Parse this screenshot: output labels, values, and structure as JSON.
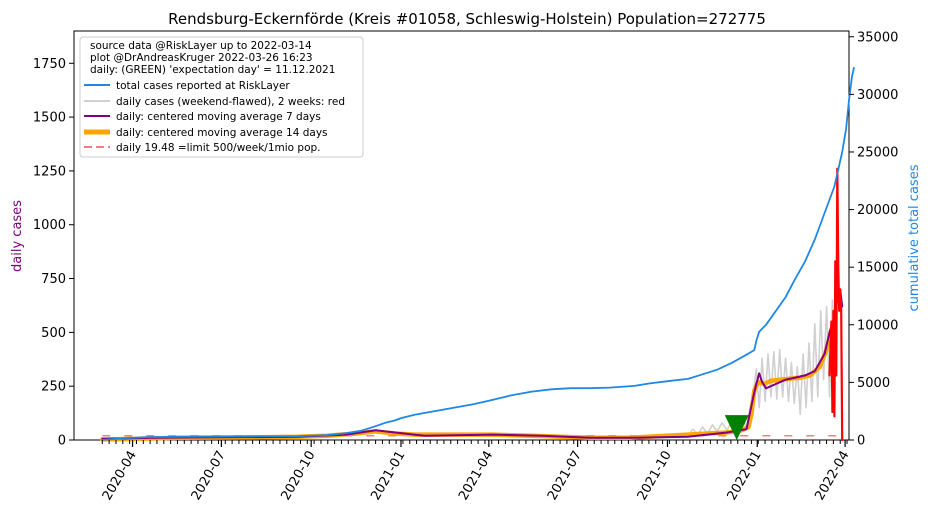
{
  "chart_data": {
    "type": "line",
    "title": "Rendsburg-Eckernförde (Kreis #01058, Schleswig-Holstein) Population=272775",
    "ylabel_left": "daily cases",
    "ylabel_right": "cumulative total cases",
    "ylim_left": [
      0,
      1900
    ],
    "ylim_right": [
      0,
      35500
    ],
    "yticks_left": [
      0,
      250,
      500,
      750,
      1000,
      1250,
      1500,
      1750
    ],
    "yticks_right": [
      0,
      5000,
      10000,
      15000,
      20000,
      25000,
      30000,
      35000
    ],
    "xlim_days": [
      -29,
      765
    ],
    "xticks": [
      {
        "day": 31,
        "label": "2020-04"
      },
      {
        "day": 122,
        "label": "2020-07"
      },
      {
        "day": 214,
        "label": "2020-10"
      },
      {
        "day": 306,
        "label": "2021-01"
      },
      {
        "day": 396,
        "label": "2021-04"
      },
      {
        "day": 487,
        "label": "2021-07"
      },
      {
        "day": 579,
        "label": "2021-10"
      },
      {
        "day": 671,
        "label": "2022-01"
      },
      {
        "day": 761,
        "label": "2022-04"
      }
    ],
    "x_origin_date": "2020-03-01",
    "legend": {
      "header": [
        "source data @RiskLayer up to 2022-03-14",
        "plot @DrAndreasKruger 2022-03-26 16:23",
        "daily: (GREEN) 'expectation day' = 11.12.2021"
      ],
      "entries": [
        {
          "label": "total cases reported at RiskLayer",
          "color": "#1e88e5",
          "style": "solid"
        },
        {
          "label": "daily cases (weekend-flawed), 2 weeks: red",
          "color": "#d0d0d0",
          "style": "solid"
        },
        {
          "label": "daily: centered moving average 7 days",
          "color": "#800080",
          "style": "solid"
        },
        {
          "label": "daily: centered moving average 14 days",
          "color": "#ffa500",
          "style": "thick"
        },
        {
          "label": "daily 19.48 =limit 500/week/1mio pop.",
          "color": "#f08080",
          "style": "dashed"
        }
      ],
      "position": "top-left"
    },
    "limit_line": {
      "value": 19.48,
      "color": "#f08080"
    },
    "expectation_marker": {
      "day": 650,
      "value": 55,
      "color": "#008000"
    },
    "series": [
      {
        "name": "total cases reported at RiskLayer",
        "axis": "right",
        "color": "#1e88e5",
        "points": [
          [
            0,
            5
          ],
          [
            20,
            150
          ],
          [
            45,
            250
          ],
          [
            90,
            290
          ],
          [
            150,
            320
          ],
          [
            200,
            340
          ],
          [
            230,
            420
          ],
          [
            250,
            600
          ],
          [
            265,
            800
          ],
          [
            280,
            1200
          ],
          [
            290,
            1500
          ],
          [
            300,
            1700
          ],
          [
            306,
            1900
          ],
          [
            320,
            2200
          ],
          [
            340,
            2500
          ],
          [
            360,
            2800
          ],
          [
            380,
            3100
          ],
          [
            396,
            3400
          ],
          [
            420,
            3900
          ],
          [
            440,
            4200
          ],
          [
            460,
            4400
          ],
          [
            480,
            4500
          ],
          [
            500,
            4500
          ],
          [
            520,
            4550
          ],
          [
            545,
            4700
          ],
          [
            560,
            4900
          ],
          [
            579,
            5100
          ],
          [
            600,
            5300
          ],
          [
            615,
            5700
          ],
          [
            630,
            6100
          ],
          [
            645,
            6700
          ],
          [
            660,
            7400
          ],
          [
            668,
            7800
          ],
          [
            670,
            8600
          ],
          [
            673,
            9400
          ],
          [
            680,
            10000
          ],
          [
            690,
            11200
          ],
          [
            700,
            12400
          ],
          [
            710,
            14000
          ],
          [
            720,
            15500
          ],
          [
            730,
            17400
          ],
          [
            740,
            19700
          ],
          [
            750,
            22000
          ],
          [
            758,
            25000
          ],
          [
            762,
            27000
          ],
          [
            765,
            29500
          ],
          [
            768,
            31500
          ],
          [
            770,
            32300
          ]
        ]
      },
      {
        "name": "daily cases (weekend-flawed)",
        "axis": "left",
        "color": "#d0d0d0",
        "points": [
          [
            600,
            20
          ],
          [
            605,
            50
          ],
          [
            610,
            25
          ],
          [
            615,
            60
          ],
          [
            620,
            30
          ],
          [
            625,
            70
          ],
          [
            630,
            40
          ],
          [
            635,
            80
          ],
          [
            640,
            45
          ],
          [
            645,
            90
          ],
          [
            650,
            55
          ],
          [
            655,
            100
          ],
          [
            660,
            60
          ],
          [
            664,
            160
          ],
          [
            667,
            220
          ],
          [
            670,
            330
          ],
          [
            673,
            150
          ],
          [
            676,
            380
          ],
          [
            679,
            180
          ],
          [
            682,
            400
          ],
          [
            685,
            200
          ],
          [
            688,
            410
          ],
          [
            691,
            190
          ],
          [
            694,
            420
          ],
          [
            697,
            200
          ],
          [
            700,
            380
          ],
          [
            703,
            180
          ],
          [
            706,
            360
          ],
          [
            709,
            170
          ],
          [
            712,
            340
          ],
          [
            715,
            120
          ],
          [
            718,
            400
          ],
          [
            721,
            150
          ],
          [
            724,
            450
          ],
          [
            727,
            180
          ],
          [
            730,
            540
          ],
          [
            733,
            200
          ],
          [
            736,
            600
          ],
          [
            739,
            280
          ],
          [
            742,
            620
          ],
          [
            745,
            200
          ],
          [
            748,
            650
          ],
          [
            751,
            300
          ]
        ]
      },
      {
        "name": "daily cases last 2 weeks",
        "axis": "left",
        "color": "#ff0000",
        "points": [
          [
            745,
            300
          ],
          [
            747,
            550
          ],
          [
            748,
            130
          ],
          [
            749,
            600
          ],
          [
            750,
            110
          ],
          [
            751,
            830
          ],
          [
            752,
            300
          ],
          [
            753,
            1260
          ],
          [
            754,
            800
          ],
          [
            755,
            600
          ],
          [
            756,
            700
          ],
          [
            757,
            600
          ],
          [
            758,
            0
          ]
        ]
      },
      {
        "name": "daily: centered moving average 7 days",
        "axis": "left",
        "color": "#800080",
        "points": [
          [
            0,
            5
          ],
          [
            50,
            10
          ],
          [
            100,
            12
          ],
          [
            200,
            15
          ],
          [
            250,
            25
          ],
          [
            280,
            45
          ],
          [
            300,
            35
          ],
          [
            330,
            20
          ],
          [
            400,
            25
          ],
          [
            450,
            20
          ],
          [
            500,
            10
          ],
          [
            540,
            10
          ],
          [
            600,
            15
          ],
          [
            640,
            35
          ],
          [
            660,
            50
          ],
          [
            667,
            200
          ],
          [
            670,
            260
          ],
          [
            673,
            310
          ],
          [
            676,
            270
          ],
          [
            680,
            240
          ],
          [
            690,
            260
          ],
          [
            700,
            280
          ],
          [
            710,
            290
          ],
          [
            720,
            300
          ],
          [
            730,
            320
          ],
          [
            740,
            400
          ],
          [
            745,
            500
          ],
          [
            750,
            570
          ],
          [
            753,
            650
          ],
          [
            756,
            700
          ],
          [
            758,
            620
          ]
        ]
      },
      {
        "name": "daily: centered moving average 14 days",
        "axis": "left",
        "color": "#ffa500",
        "points": [
          [
            0,
            3
          ],
          [
            40,
            6
          ],
          [
            80,
            10
          ],
          [
            150,
            12
          ],
          [
            200,
            15
          ],
          [
            230,
            20
          ],
          [
            260,
            30
          ],
          [
            280,
            40
          ],
          [
            300,
            30
          ],
          [
            320,
            25
          ],
          [
            360,
            25
          ],
          [
            400,
            25
          ],
          [
            420,
            22
          ],
          [
            440,
            20
          ],
          [
            470,
            15
          ],
          [
            500,
            10
          ],
          [
            540,
            10
          ],
          [
            570,
            18
          ],
          [
            600,
            25
          ],
          [
            620,
            30
          ],
          [
            640,
            35
          ],
          [
            655,
            45
          ],
          [
            662,
            60
          ],
          [
            665,
            120
          ],
          [
            668,
            230
          ],
          [
            672,
            270
          ],
          [
            678,
            260
          ],
          [
            685,
            275
          ],
          [
            695,
            280
          ],
          [
            705,
            285
          ],
          [
            715,
            290
          ],
          [
            725,
            300
          ],
          [
            735,
            340
          ],
          [
            742,
            420
          ],
          [
            747,
            510
          ],
          [
            751,
            570
          ]
        ]
      }
    ]
  }
}
